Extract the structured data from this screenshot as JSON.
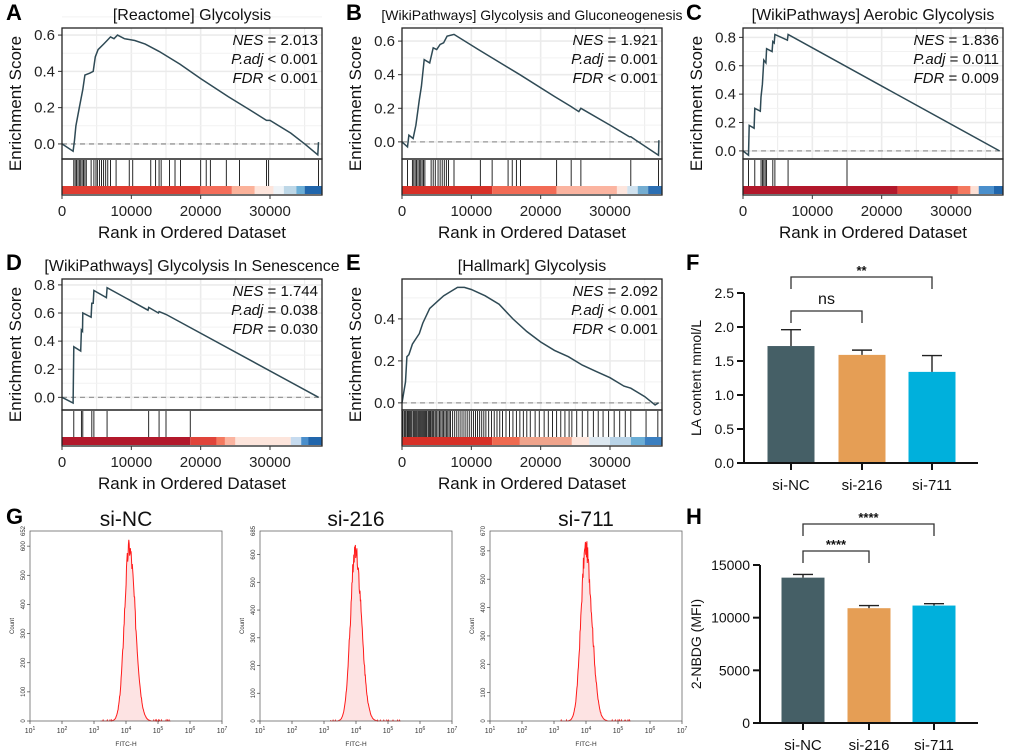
{
  "chart_data": [
    {
      "panel": "A",
      "type": "line",
      "title": "[Reactome] Glycolysis",
      "ylabel": "Enrichment Score",
      "xlabel": "Rank in Ordered Dataset",
      "xlim": [
        0,
        37500
      ],
      "xticks": [
        0,
        10000,
        20000,
        30000
      ],
      "ylim": [
        -0.083,
        0.639
      ],
      "yticks": [
        "0.0",
        "0.2",
        "0.4",
        "0.6"
      ],
      "stats": [
        {
          "label": "NES",
          "op": "=",
          "value": "2.013"
        },
        {
          "label": "P.adj",
          "op": "<",
          "value": "0.001"
        },
        {
          "label": "FDR",
          "op": "<",
          "value": "0.001"
        }
      ],
      "curve": [
        [
          0,
          0
        ],
        [
          1600,
          -0.04
        ],
        [
          1800,
          0.02
        ],
        [
          2000,
          0.1
        ],
        [
          2500,
          0.2
        ],
        [
          3000,
          0.3
        ],
        [
          3300,
          0.38
        ],
        [
          4000,
          0.39
        ],
        [
          4500,
          0.4
        ],
        [
          4800,
          0.48
        ],
        [
          5200,
          0.52
        ],
        [
          6000,
          0.55
        ],
        [
          6500,
          0.57
        ],
        [
          7000,
          0.59
        ],
        [
          7500,
          0.58
        ],
        [
          8000,
          0.6
        ],
        [
          9000,
          0.58
        ],
        [
          10500,
          0.57
        ],
        [
          12000,
          0.55
        ],
        [
          14000,
          0.51
        ],
        [
          17000,
          0.44
        ],
        [
          20000,
          0.36
        ],
        [
          24000,
          0.26
        ],
        [
          27000,
          0.19
        ],
        [
          29500,
          0.13
        ],
        [
          30000,
          0.13
        ],
        [
          33000,
          0.06
        ],
        [
          35000,
          0.0
        ],
        [
          36900,
          -0.06
        ],
        [
          37000,
          0.01
        ]
      ],
      "hits": [
        1700,
        1900,
        2100,
        2300,
        2500,
        2700,
        2900,
        3100,
        3300,
        3500,
        4200,
        4600,
        4900,
        5100,
        5400,
        5700,
        6000,
        6300,
        6600,
        7000,
        7800,
        9700,
        10200,
        12800,
        13500,
        14000,
        14300,
        15500,
        16300,
        17100,
        20000,
        20800,
        21400,
        23700,
        25600,
        29500,
        29800,
        37000
      ],
      "heat": [
        [
          0,
          20000,
          "#e03c31"
        ],
        [
          20000,
          24500,
          "#f46d5a"
        ],
        [
          24500,
          27800,
          "#fbb29a"
        ],
        [
          27800,
          30500,
          "#fde5dc"
        ],
        [
          30500,
          32000,
          "#eef3f7"
        ],
        [
          32000,
          33800,
          "#bdd7e7"
        ],
        [
          33800,
          35000,
          "#6baed6"
        ],
        [
          35000,
          37500,
          "#2166ac"
        ]
      ]
    },
    {
      "panel": "B",
      "type": "line",
      "title": "[WikiPathways] Glycolysis and Gluconeogenesis",
      "ylabel": "Enrichment Score",
      "xlabel": "Rank in Ordered Dataset",
      "xlim": [
        0,
        37500
      ],
      "xticks": [
        0,
        10000,
        20000,
        30000
      ],
      "ylim": [
        -0.102,
        0.678
      ],
      "yticks": [
        "0.0",
        "0.2",
        "0.4",
        "0.6"
      ],
      "stats": [
        {
          "label": "NES",
          "op": "=",
          "value": "1.921"
        },
        {
          "label": "P.adj",
          "op": "=",
          "value": "0.001"
        },
        {
          "label": "FDR",
          "op": "<",
          "value": "0.001"
        }
      ],
      "curve": [
        [
          0,
          0
        ],
        [
          800,
          -0.03
        ],
        [
          1000,
          0.04
        ],
        [
          1600,
          0.02
        ],
        [
          2000,
          0.1
        ],
        [
          2500,
          0.25
        ],
        [
          2800,
          0.33
        ],
        [
          3200,
          0.49
        ],
        [
          4000,
          0.47
        ],
        [
          4500,
          0.56
        ],
        [
          5000,
          0.55
        ],
        [
          5500,
          0.58
        ],
        [
          6000,
          0.59
        ],
        [
          6500,
          0.63
        ],
        [
          7500,
          0.64
        ],
        [
          11000,
          0.55
        ],
        [
          13000,
          0.5
        ],
        [
          17000,
          0.4
        ],
        [
          22000,
          0.27
        ],
        [
          24400,
          0.21
        ],
        [
          25500,
          0.18
        ],
        [
          25800,
          0.2
        ],
        [
          30000,
          0.1
        ],
        [
          32800,
          0.03
        ],
        [
          33000,
          0.03
        ],
        [
          37000,
          -0.08
        ],
        [
          37050,
          0.01
        ]
      ],
      "hits": [
        800,
        1500,
        1700,
        1900,
        2100,
        2300,
        2500,
        2700,
        2900,
        3100,
        3300,
        4200,
        4500,
        4800,
        5200,
        5500,
        5800,
        6100,
        6400,
        6700,
        7500,
        11300,
        13000,
        15300,
        15900,
        16500,
        17100,
        22300,
        24400,
        25800,
        33000,
        37000
      ],
      "heat": [
        [
          0,
          13000,
          "#d73027"
        ],
        [
          13000,
          22300,
          "#f26b55"
        ],
        [
          22300,
          31000,
          "#fbb4a0"
        ],
        [
          31000,
          32500,
          "#fde6de"
        ],
        [
          32500,
          34000,
          "#d0e2ef"
        ],
        [
          34000,
          35500,
          "#74add1"
        ],
        [
          35500,
          37500,
          "#2c6fb3"
        ]
      ]
    },
    {
      "panel": "C",
      "type": "line",
      "title": "[WikiPathways] Aerobic Glycolysis",
      "ylabel": "Enrichment Score",
      "xlabel": "Rank in Ordered Dataset",
      "xlim": [
        0,
        37500
      ],
      "xticks": [
        0,
        10000,
        20000,
        30000
      ],
      "ylim": [
        -0.057,
        0.866
      ],
      "yticks": [
        "0.0",
        "0.2",
        "0.4",
        "0.6",
        "0.8"
      ],
      "stats": [
        {
          "label": "NES",
          "op": "=",
          "value": "1.836"
        },
        {
          "label": "P.adj",
          "op": "=",
          "value": "0.011"
        },
        {
          "label": "FDR",
          "op": "=",
          "value": "0.009"
        }
      ],
      "curve": [
        [
          0,
          0
        ],
        [
          800,
          -0.03
        ],
        [
          900,
          0.18
        ],
        [
          1600,
          0.16
        ],
        [
          1700,
          0.3
        ],
        [
          2500,
          0.28
        ],
        [
          2600,
          0.38
        ],
        [
          2800,
          0.47
        ],
        [
          3000,
          0.64
        ],
        [
          3300,
          0.62
        ],
        [
          3400,
          0.72
        ],
        [
          4200,
          0.7
        ],
        [
          4300,
          0.77
        ],
        [
          4500,
          0.76
        ],
        [
          4600,
          0.82
        ],
        [
          6400,
          0.78
        ],
        [
          6500,
          0.82
        ],
        [
          37000,
          0
        ]
      ],
      "hits": [
        800,
        1700,
        2600,
        2800,
        3000,
        3200,
        3400,
        4300,
        4600,
        6500,
        15000
      ],
      "heat": [
        [
          0,
          22300,
          "#b2182b"
        ],
        [
          22300,
          31000,
          "#e0443a"
        ],
        [
          31000,
          32800,
          "#f4795f"
        ],
        [
          32800,
          34000,
          "#fde0d5"
        ],
        [
          34000,
          36200,
          "#4a8fcc"
        ],
        [
          36200,
          37500,
          "#2166ac"
        ]
      ]
    },
    {
      "panel": "D",
      "type": "line",
      "title": "[WikiPathways] Glycolysis In Senescence",
      "ylabel": "Enrichment Score",
      "xlabel": "Rank in Ordered Dataset",
      "xlim": [
        0,
        37500
      ],
      "xticks": [
        0,
        10000,
        20000,
        30000
      ],
      "ylim": [
        -0.09,
        0.842
      ],
      "yticks": [
        "0.0",
        "0.2",
        "0.4",
        "0.6",
        "0.8"
      ],
      "stats": [
        {
          "label": "NES",
          "op": "=",
          "value": "1.744"
        },
        {
          "label": "P.adj",
          "op": "=",
          "value": "0.038"
        },
        {
          "label": "FDR",
          "op": "=",
          "value": "0.030"
        }
      ],
      "curve": [
        [
          0,
          0
        ],
        [
          1600,
          -0.04
        ],
        [
          1700,
          0.36
        ],
        [
          2700,
          0.33
        ],
        [
          2800,
          0.48
        ],
        [
          2950,
          0.47
        ],
        [
          3000,
          0.6
        ],
        [
          4200,
          0.57
        ],
        [
          4300,
          0.67
        ],
        [
          4500,
          0.67
        ],
        [
          4600,
          0.76
        ],
        [
          6400,
          0.71
        ],
        [
          6500,
          0.78
        ],
        [
          12400,
          0.62
        ],
        [
          12500,
          0.64
        ],
        [
          13900,
          0.6
        ],
        [
          14000,
          0.61
        ],
        [
          15000,
          0.59
        ],
        [
          37000,
          0
        ]
      ],
      "hits": [
        1700,
        2800,
        3000,
        4300,
        4600,
        6500,
        12500,
        14000,
        15000,
        18500
      ],
      "heat": [
        [
          0,
          18500,
          "#b2182b"
        ],
        [
          18500,
          22300,
          "#e0443a"
        ],
        [
          22300,
          23500,
          "#f4795f"
        ],
        [
          23500,
          25000,
          "#fbb4a0"
        ],
        [
          25000,
          33000,
          "#fde5dc"
        ],
        [
          33000,
          34500,
          "#c6dbef"
        ],
        [
          34500,
          35500,
          "#4a8fcc"
        ],
        [
          35500,
          37500,
          "#2166ac"
        ]
      ]
    },
    {
      "panel": "E",
      "type": "line",
      "title": "[Hallmark] Glycolysis",
      "ylabel": "Enrichment Score",
      "xlabel": "Rank in Ordered Dataset",
      "xlim": [
        0,
        37500
      ],
      "xticks": [
        0,
        10000,
        20000,
        30000
      ],
      "ylim": [
        -0.034,
        0.59
      ],
      "yticks": [
        "0.0",
        "0.2",
        "0.4"
      ],
      "stats": [
        {
          "label": "NES",
          "op": "=",
          "value": "2.092"
        },
        {
          "label": "P.adj",
          "op": "<",
          "value": "0.001"
        },
        {
          "label": "FDR",
          "op": "<",
          "value": "0.001"
        }
      ],
      "curve": [
        [
          0,
          0
        ],
        [
          500,
          0.1
        ],
        [
          700,
          0.22
        ],
        [
          1000,
          0.23
        ],
        [
          1500,
          0.28
        ],
        [
          2500,
          0.33
        ],
        [
          3000,
          0.38
        ],
        [
          4000,
          0.45
        ],
        [
          5000,
          0.48
        ],
        [
          6000,
          0.51
        ],
        [
          7000,
          0.53
        ],
        [
          8000,
          0.55
        ],
        [
          9000,
          0.55
        ],
        [
          10000,
          0.54
        ],
        [
          12000,
          0.51
        ],
        [
          14000,
          0.47
        ],
        [
          16000,
          0.4
        ],
        [
          18000,
          0.34
        ],
        [
          20000,
          0.29
        ],
        [
          22000,
          0.25
        ],
        [
          24000,
          0.22
        ],
        [
          26000,
          0.18
        ],
        [
          28000,
          0.15
        ],
        [
          30000,
          0.12
        ],
        [
          32000,
          0.08
        ],
        [
          33000,
          0.07
        ],
        [
          35000,
          0.03
        ],
        [
          36500,
          -0.01
        ],
        [
          37000,
          0.0
        ]
      ],
      "hits": [
        100,
        300,
        450,
        600,
        800,
        950,
        1100,
        1250,
        1400,
        1600,
        1750,
        1900,
        2050,
        2200,
        2400,
        2550,
        2700,
        2850,
        3000,
        3150,
        3300,
        3450,
        3600,
        3800,
        3950,
        4100,
        4300,
        4450,
        4600,
        4800,
        5000,
        5200,
        5400,
        5600,
        5800,
        6000,
        6200,
        6400,
        6600,
        6800,
        7000,
        7300,
        7600,
        7900,
        8200,
        8500,
        8800,
        9100,
        9400,
        9700,
        10000,
        10300,
        10600,
        10900,
        11200,
        11500,
        11800,
        12100,
        12500,
        12900,
        13300,
        13700,
        14100,
        14500,
        15000,
        15500,
        16000,
        16500,
        17000,
        17500,
        18000,
        18500,
        19200,
        19800,
        20500,
        21100,
        21700,
        22300,
        22900,
        23500,
        24100,
        24500,
        25200,
        26000,
        26800,
        27600,
        28300,
        29000,
        29800,
        30600,
        31400,
        32200,
        33000,
        35200,
        36900
      ],
      "heat": [
        [
          0,
          13000,
          "#d73027"
        ],
        [
          13000,
          17000,
          "#ef6a50"
        ],
        [
          17000,
          24500,
          "#f0a48c"
        ],
        [
          24500,
          27000,
          "#fde5dc"
        ],
        [
          27000,
          30000,
          "#dde8f0"
        ],
        [
          30000,
          33000,
          "#b9d4e8"
        ],
        [
          33000,
          35000,
          "#6baed6"
        ],
        [
          35000,
          37500,
          "#3b7fc0"
        ]
      ]
    },
    {
      "panel": "F",
      "type": "bar",
      "ylabel": "LA content mmol/L",
      "categories": [
        "si-NC",
        "si-216",
        "si-711"
      ],
      "values": [
        1.72,
        1.59,
        1.34
      ],
      "errors": [
        0.24,
        0.07,
        0.24
      ],
      "colors": [
        "#455f66",
        "#e59e55",
        "#00b0dc"
      ],
      "ylim": [
        0,
        2.5
      ],
      "yticks": [
        "0.0",
        "0.5",
        "1.0",
        "1.5",
        "2.0",
        "2.5"
      ],
      "significance": [
        {
          "from": 0,
          "to": 1,
          "label": "ns"
        },
        {
          "from": 0,
          "to": 2,
          "label": "**"
        }
      ]
    },
    {
      "panel": "G",
      "type": "histogram",
      "xlabel": "FITC-H",
      "ylabel": "Count",
      "xscale": "log",
      "xticks": [
        "1",
        "2",
        "3",
        "4",
        "5",
        "6",
        "7"
      ],
      "yticks": [
        "0",
        "100",
        "200",
        "300",
        "400",
        "500",
        "600"
      ],
      "line_color": "#ff1a1a",
      "fill_color": "#fde3e3",
      "groups": [
        {
          "title": "si-NC",
          "ymax": "652",
          "peak_fitc": 12600,
          "peak_count": 594
        },
        {
          "title": "si-216",
          "ymax": "685",
          "peak_fitc": 9500,
          "peak_count": 622
        },
        {
          "title": "si-711",
          "ymax": "670",
          "peak_fitc": 9800,
          "peak_count": 610
        }
      ]
    },
    {
      "panel": "H",
      "type": "bar",
      "ylabel": "2-NBDG (MFI)",
      "categories": [
        "si-NC",
        "si-216",
        "si-711"
      ],
      "values": [
        13800,
        10900,
        11150
      ],
      "errors": [
        300,
        250,
        180
      ],
      "colors": [
        "#455f66",
        "#e59e55",
        "#00b0dc"
      ],
      "ylim": [
        0,
        15000
      ],
      "yticks": [
        "0",
        "5000",
        "10000",
        "15000"
      ],
      "significance": [
        {
          "from": 0,
          "to": 1,
          "label": "****"
        },
        {
          "from": 0,
          "to": 2,
          "label": "****"
        }
      ]
    }
  ]
}
